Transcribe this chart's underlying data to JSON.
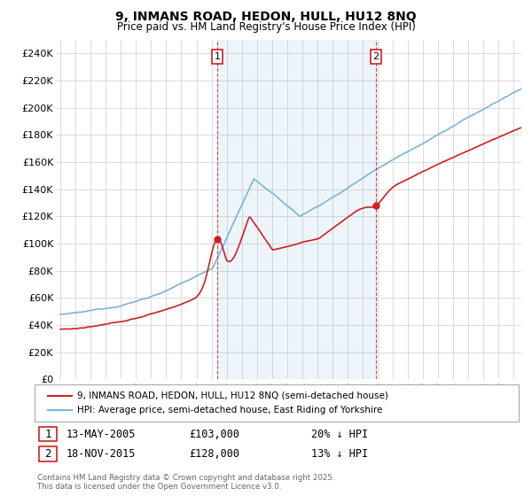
{
  "title_line1": "9, INMANS ROAD, HEDON, HULL, HU12 8NQ",
  "title_line2": "Price paid vs. HM Land Registry's House Price Index (HPI)",
  "ylim": [
    0,
    250000
  ],
  "yticks": [
    0,
    20000,
    40000,
    60000,
    80000,
    100000,
    120000,
    140000,
    160000,
    180000,
    200000,
    220000,
    240000
  ],
  "ytick_labels": [
    "£0",
    "£20K",
    "£40K",
    "£60K",
    "£80K",
    "£100K",
    "£120K",
    "£140K",
    "£160K",
    "£180K",
    "£200K",
    "£220K",
    "£240K"
  ],
  "hpi_color": "#7ab4d8",
  "price_color": "#cc2222",
  "marker1_price": 103000,
  "marker2_price": 128000,
  "sale1_date": "13-MAY-2005",
  "sale1_price": "£103,000",
  "sale1_hpi": "20% ↓ HPI",
  "sale2_date": "18-NOV-2015",
  "sale2_price": "£128,000",
  "sale2_hpi": "13% ↓ HPI",
  "legend_line1": "9, INMANS ROAD, HEDON, HULL, HU12 8NQ (semi-detached house)",
  "legend_line2": "HPI: Average price, semi-detached house, East Riding of Yorkshire",
  "footer": "Contains HM Land Registry data © Crown copyright and database right 2025.\nThis data is licensed under the Open Government Licence v3.0.",
  "sale1_year": 2005.37,
  "sale2_year": 2015.88,
  "xmin": 1995.0,
  "xmax": 2025.5
}
